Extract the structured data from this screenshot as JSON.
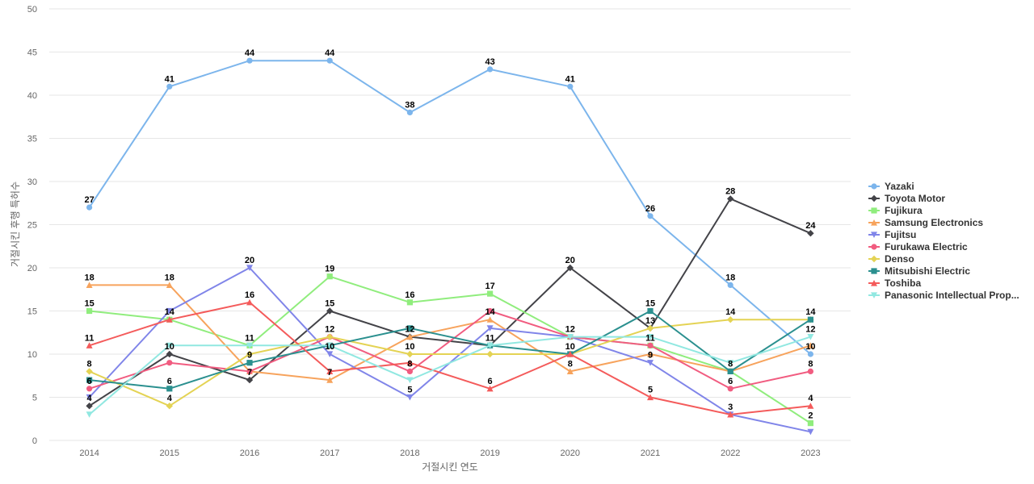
{
  "chart_data": {
    "type": "line",
    "title": "",
    "xlabel": "거절시킨 연도",
    "ylabel": "거절시킨 후행 특허수",
    "ylim": [
      0,
      50
    ],
    "yticks": [
      0,
      5,
      10,
      15,
      20,
      25,
      30,
      35,
      40,
      45,
      50
    ],
    "grid": true,
    "legend": "right",
    "categories": [
      "2014",
      "2015",
      "2016",
      "2017",
      "2018",
      "2019",
      "2020",
      "2021",
      "2022",
      "2023"
    ],
    "series": [
      {
        "name": "Yazaki",
        "color": "#7cb5ec",
        "marker": "circle",
        "values": [
          27,
          41,
          44,
          44,
          38,
          43,
          41,
          26,
          18,
          10
        ]
      },
      {
        "name": "Toyota Motor",
        "color": "#434348",
        "marker": "diamond",
        "values": [
          4,
          10,
          7,
          15,
          12,
          11,
          20,
          13,
          28,
          24
        ]
      },
      {
        "name": "Fujikura",
        "color": "#90ed7d",
        "marker": "square",
        "values": [
          15,
          14,
          11,
          19,
          16,
          17,
          12,
          11,
          8,
          2
        ]
      },
      {
        "name": "Samsung Electronics",
        "color": "#f7a35c",
        "marker": "triangle",
        "values": [
          18,
          18,
          8,
          7,
          12,
          14,
          8,
          10,
          8,
          11
        ]
      },
      {
        "name": "Fujitsu",
        "color": "#8085e9",
        "marker": "triangle-down",
        "values": [
          5,
          15,
          20,
          10,
          5,
          13,
          12,
          9,
          3,
          1
        ]
      },
      {
        "name": "Furukawa Electric",
        "color": "#f15c80",
        "marker": "circle",
        "values": [
          6,
          9,
          8,
          12,
          8,
          15,
          12,
          11,
          6,
          8
        ]
      },
      {
        "name": "Denso",
        "color": "#e4d354",
        "marker": "diamond",
        "values": [
          8,
          4,
          10,
          12,
          10,
          10,
          10,
          13,
          14,
          14
        ]
      },
      {
        "name": "Mitsubishi Electric",
        "color": "#2b908f",
        "marker": "square",
        "values": [
          7,
          6,
          9,
          11,
          13,
          11,
          10,
          15,
          8,
          14
        ]
      },
      {
        "name": "Toshiba",
        "color": "#f45b5b",
        "marker": "triangle",
        "values": [
          11,
          14,
          16,
          8,
          9,
          6,
          10,
          5,
          3,
          4
        ]
      },
      {
        "name": "Panasonic Intellectual Prop...",
        "color": "#91e8e1",
        "marker": "triangle-down",
        "values": [
          3,
          11,
          11,
          11,
          7,
          11,
          12,
          12,
          9,
          12
        ]
      }
    ],
    "data_labels": [
      {
        "x": "2014",
        "text": "27",
        "value": 27
      },
      {
        "x": "2014",
        "text": "18",
        "value": 18
      },
      {
        "x": "2014",
        "text": "15",
        "value": 15
      },
      {
        "x": "2014",
        "text": "11",
        "value": 11
      },
      {
        "x": "2014",
        "text": "8",
        "value": 8
      },
      {
        "x": "2014",
        "text": "6",
        "value": 6
      },
      {
        "x": "2014",
        "text": "4",
        "value": 4
      },
      {
        "x": "2015",
        "text": "41",
        "value": 41
      },
      {
        "x": "2015",
        "text": "18",
        "value": 18
      },
      {
        "x": "2015",
        "text": "14",
        "value": 14
      },
      {
        "x": "2015",
        "text": "10",
        "value": 10
      },
      {
        "x": "2015",
        "text": "6",
        "value": 6
      },
      {
        "x": "2015",
        "text": "4",
        "value": 4
      },
      {
        "x": "2016",
        "text": "44",
        "value": 44
      },
      {
        "x": "2016",
        "text": "20",
        "value": 20
      },
      {
        "x": "2016",
        "text": "16",
        "value": 16
      },
      {
        "x": "2016",
        "text": "11",
        "value": 11
      },
      {
        "x": "2016",
        "text": "9",
        "value": 9
      },
      {
        "x": "2016",
        "text": "7",
        "value": 7
      },
      {
        "x": "2017",
        "text": "44",
        "value": 44
      },
      {
        "x": "2017",
        "text": "19",
        "value": 19
      },
      {
        "x": "2017",
        "text": "15",
        "value": 15
      },
      {
        "x": "2017",
        "text": "12",
        "value": 12
      },
      {
        "x": "2017",
        "text": "10",
        "value": 10
      },
      {
        "x": "2017",
        "text": "7",
        "value": 7
      },
      {
        "x": "2018",
        "text": "38",
        "value": 38
      },
      {
        "x": "2018",
        "text": "16",
        "value": 16
      },
      {
        "x": "2018",
        "text": "12",
        "value": 12
      },
      {
        "x": "2018",
        "text": "10",
        "value": 10
      },
      {
        "x": "2018",
        "text": "8",
        "value": 8
      },
      {
        "x": "2018",
        "text": "5",
        "value": 5
      },
      {
        "x": "2019",
        "text": "43",
        "value": 43
      },
      {
        "x": "2019",
        "text": "17",
        "value": 17
      },
      {
        "x": "2019",
        "text": "14",
        "value": 14
      },
      {
        "x": "2019",
        "text": "11",
        "value": 11
      },
      {
        "x": "2019",
        "text": "6",
        "value": 6
      },
      {
        "x": "2020",
        "text": "41",
        "value": 41
      },
      {
        "x": "2020",
        "text": "20",
        "value": 20
      },
      {
        "x": "2020",
        "text": "12",
        "value": 12
      },
      {
        "x": "2020",
        "text": "10",
        "value": 10
      },
      {
        "x": "2020",
        "text": "8",
        "value": 8
      },
      {
        "x": "2021",
        "text": "26",
        "value": 26
      },
      {
        "x": "2021",
        "text": "15",
        "value": 15
      },
      {
        "x": "2021",
        "text": "13",
        "value": 13
      },
      {
        "x": "2021",
        "text": "11",
        "value": 11
      },
      {
        "x": "2021",
        "text": "9",
        "value": 9
      },
      {
        "x": "2021",
        "text": "5",
        "value": 5
      },
      {
        "x": "2022",
        "text": "28",
        "value": 28
      },
      {
        "x": "2022",
        "text": "18",
        "value": 18
      },
      {
        "x": "2022",
        "text": "14",
        "value": 14
      },
      {
        "x": "2022",
        "text": "8",
        "value": 8
      },
      {
        "x": "2022",
        "text": "6",
        "value": 6
      },
      {
        "x": "2022",
        "text": "3",
        "value": 3
      },
      {
        "x": "2023",
        "text": "24",
        "value": 24
      },
      {
        "x": "2023",
        "text": "14",
        "value": 14
      },
      {
        "x": "2023",
        "text": "12",
        "value": 12
      },
      {
        "x": "2023",
        "text": "10",
        "value": 10
      },
      {
        "x": "2023",
        "text": "8",
        "value": 8
      },
      {
        "x": "2023",
        "text": "4",
        "value": 4
      },
      {
        "x": "2023",
        "text": "2",
        "value": 2
      }
    ]
  }
}
